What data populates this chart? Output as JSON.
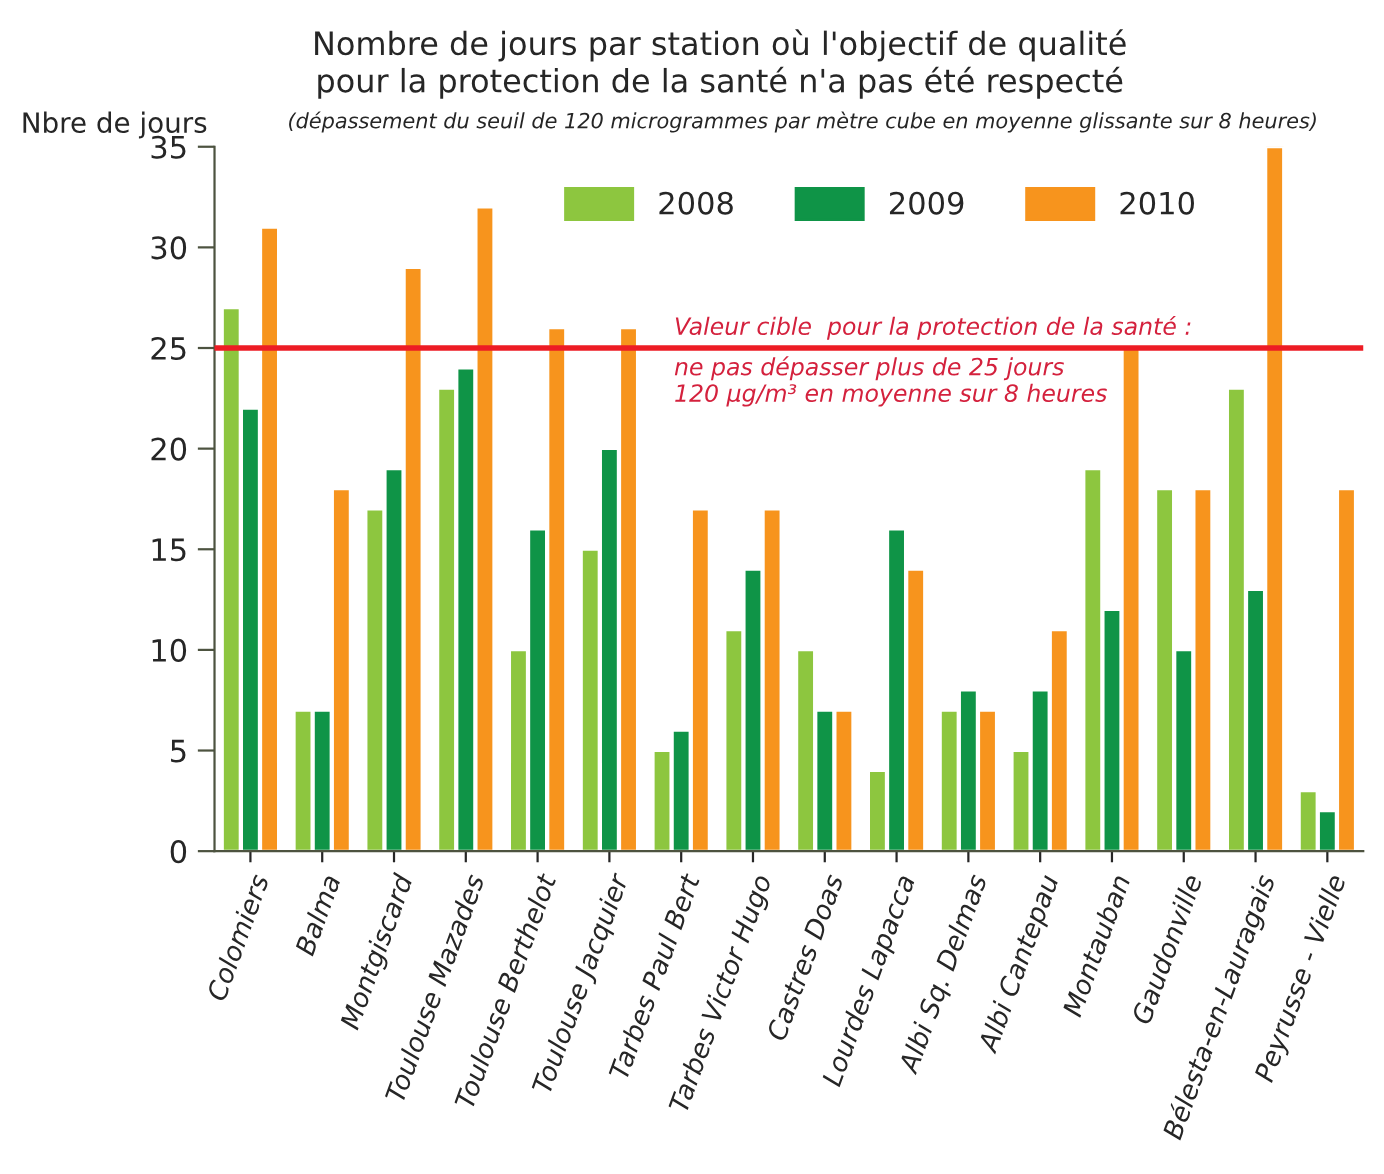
{
  "chart_data": {
    "type": "bar",
    "title": "Nombre de jours par station où l'objectif de qualité\npour la protection de la santé n'a pas été respecté",
    "subtitle": "(dépassement du seuil de 120 microgrammes par mètre cube en moyenne glissante sur 8 heures)",
    "ylabel": "Nbre de jours",
    "categories": [
      "Colomiers",
      "Balma",
      "Montgiscard",
      "Toulouse Mazades",
      "Toulouse Berthelot",
      "Toulouse Jacquier",
      "Tarbes Paul Bert",
      "Tarbes Victor Hugo",
      "Castres Doas",
      "Lourdes Lapacca",
      "Albi Sq. Delmas",
      "Albi Cantepau",
      "Montauban",
      "Gaudonville",
      "Bélesta-en-Lauragais",
      "Peyrusse - Vielle"
    ],
    "series": [
      {
        "name": "2008",
        "color": "#8dc63f",
        "values": [
          27,
          7,
          17,
          23,
          10,
          15,
          5,
          11,
          10,
          4,
          7,
          5,
          19,
          18,
          23,
          3
        ]
      },
      {
        "name": "2009",
        "color": "#0f9447",
        "values": [
          22,
          7,
          19,
          24,
          16,
          20,
          6,
          14,
          7,
          16,
          8,
          8,
          12,
          10,
          13,
          2
        ]
      },
      {
        "name": "2010",
        "color": "#f7941d",
        "values": [
          31,
          18,
          29,
          32,
          26,
          26,
          17,
          17,
          7,
          14,
          7,
          11,
          25,
          18,
          35,
          18
        ]
      }
    ],
    "ylim": [
      0,
      35
    ],
    "yticks": [
      0,
      5,
      10,
      15,
      20,
      25,
      30,
      35
    ],
    "grid": false,
    "legend": "top",
    "ref_lines": [
      {
        "axis": "y",
        "value": 25,
        "label": "Valeur cible  pour la protection de la santé :\nne pas dépasser plus de 25 jours\n120 µg/m³ en moyenne sur 8 heures",
        "color": "#ed1c24"
      }
    ]
  }
}
